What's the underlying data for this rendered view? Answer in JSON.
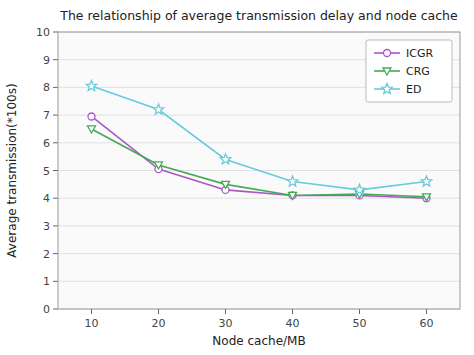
{
  "chart_data": {
    "type": "line",
    "title": "The relationship of average transmission delay and node cache",
    "x_label": "Node cache/MB",
    "y_label": "Average transmission(*100s)",
    "x": [
      10,
      20,
      30,
      40,
      50,
      60
    ],
    "series": [
      {
        "name": "ICGR",
        "color": "#aa55cc",
        "marker": "circle",
        "values": [
          6.95,
          5.05,
          4.3,
          4.1,
          4.1,
          4.0
        ]
      },
      {
        "name": "CRG",
        "color": "#44aa55",
        "marker": "triangle-down",
        "values": [
          6.5,
          5.2,
          4.5,
          4.1,
          4.15,
          4.05
        ]
      },
      {
        "name": "ED",
        "color": "#66ccdd",
        "marker": "star",
        "values": [
          8.05,
          7.2,
          5.4,
          4.6,
          4.3,
          4.6
        ]
      }
    ],
    "xlim": [
      5,
      65
    ],
    "xticks": [
      10,
      20,
      30,
      40,
      50,
      60
    ],
    "ylim": [
      0,
      10
    ],
    "yticks": [
      0,
      1,
      2,
      3,
      4,
      5,
      6,
      7,
      8,
      9,
      10
    ],
    "grid": true,
    "legend": "upper right"
  }
}
